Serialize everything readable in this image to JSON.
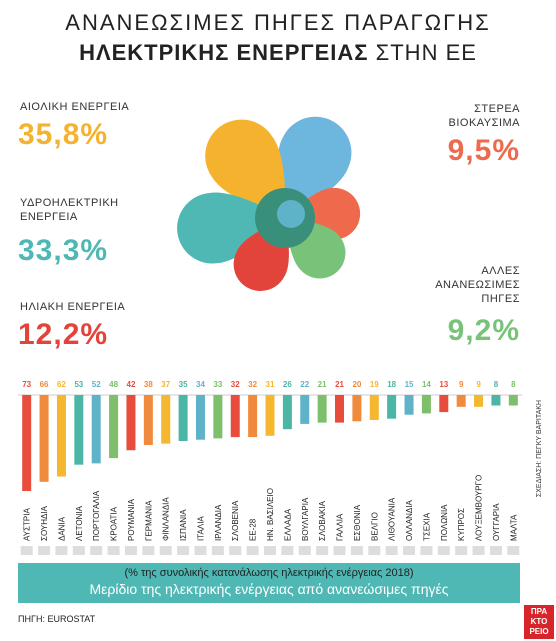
{
  "header": {
    "title_line1": "ΑΝΑΝΕΩΣΙΜΕΣ ΠΗΓΕΣ ΠΑΡΑΓΩΓΗΣ",
    "title_line2_bold": "ΗΛΕΚΤΡΙΚΗΣ ΕΝΕΡΓΕΙΑΣ",
    "title_line2_rest": "ΣΤΗΝ ΕΕ"
  },
  "chart_data": [
    {
      "type": "petal",
      "categories": [
        "ΑΙΟΛΙΚΗ ΕΝΕΡΓΕΙΑ",
        "ΥΔΡΟΗΛΕΚΤΡΙΚΗ ΕΝΕΡΓΕΙΑ",
        "ΗΛΙΑΚΗ ΕΝΕΡΓΕΙΑ",
        "ΣΤΕΡΕΑ ΒΙΟΚΑΥΣΙΜΑ",
        "ΑΛΛΕΣ ΑΝΑΝΕΩΣΙΜΕΣ ΠΗΓΕΣ"
      ],
      "values": [
        35.8,
        33.3,
        12.2,
        9.5,
        9.2
      ],
      "value_labels": [
        "35,8%",
        "33,3%",
        "12,2%",
        "9,5%",
        "9,2%"
      ],
      "colors": [
        "#f5b22e",
        "#4fb8b4",
        "#e2443b",
        "#ef6a4c",
        "#79c27a"
      ]
    },
    {
      "type": "bar",
      "categories": [
        "ΑΥΣΤΡΙΑ",
        "ΣΟΥΗΔΙΑ",
        "ΔΑΝΙΑ",
        "ΛΕΤΟΝΙΑ",
        "ΠΟΡΤΟΓΑΛΙΑ",
        "ΚΡΟΑΤΙΑ",
        "ΡΟΥΜΑΝΙΑ",
        "ΓΕΡΜΑΝΙΑ",
        "ΦΙΝΛΑΝΔΙΑ",
        "ΙΣΠΑΝΙΑ",
        "ΙΤΑΛΙΑ",
        "ΙΡΛΑΝΔΙΑ",
        "ΣΛΟΒΕΝΙΑ",
        "ΕΕ-28",
        "ΗΝ. ΒΑΣΙΛΕΙΟ",
        "ΕΛΛΑΔΑ",
        "ΒΟΥΛΓΑΡΙΑ",
        "ΣΛΟΒΑΚΙΑ",
        "ΓΑΛΛΙΑ",
        "ΕΣΘΟΝΙΑ",
        "ΒΕΛΓΙΟ",
        "ΛΙΘΟΥΑΝΙΑ",
        "ΟΛΛΑΝΔΙΑ",
        "ΤΣΕΧΙΑ",
        "ΠΟΛΩΝΙΑ",
        "ΚΥΠΡΟΣ",
        "ΛΟΥΞΕΜΒΟΥΡΓΟ",
        "ΟΥΓΓΑΡΙΑ",
        "ΜΑΛΤΑ"
      ],
      "values": [
        73,
        66,
        62,
        53,
        52,
        48,
        42,
        38,
        37,
        35,
        34,
        33,
        32,
        32,
        31,
        26,
        22,
        21,
        21,
        20,
        19,
        18,
        15,
        14,
        13,
        9,
        9,
        8,
        8
      ],
      "colors": [
        "#e84c3d",
        "#f08a3c",
        "#f5b730",
        "#4bb6a5",
        "#5fb3c9",
        "#7dbf6a",
        "#e84c3d",
        "#f08a3c",
        "#f5b730",
        "#4bb6a5",
        "#5fb3c9",
        "#7dbf6a",
        "#e84c3d",
        "#f08a3c",
        "#f5b730",
        "#4bb6a5",
        "#5fb3c9",
        "#7dbf6a",
        "#e84c3d",
        "#f08a3c",
        "#f5b730",
        "#4bb6a5",
        "#5fb3c9",
        "#7dbf6a",
        "#e84c3d",
        "#f08a3c",
        "#f5b730",
        "#4bb6a5",
        "#7dbf6a"
      ],
      "subtitle": "(% της συνολικής κατανάλωσης ηλεκτρικής ενέργειας 2018)",
      "title": "Μερίδιο της ηλεκτρικής ενέργειας από ανανεώσιμες πηγές"
    }
  ],
  "footer": {
    "source": "ΠΗΓΗ: EUROSTAT",
    "credit": "ΣΧΕΔΙΑΣΗ: ΠΕΓΚΥ ΒΑΡΙΤΑΚΗ",
    "logo": [
      "ΠΡΑ",
      "ΚΤΟ",
      "ΡΕΙΟ"
    ]
  }
}
